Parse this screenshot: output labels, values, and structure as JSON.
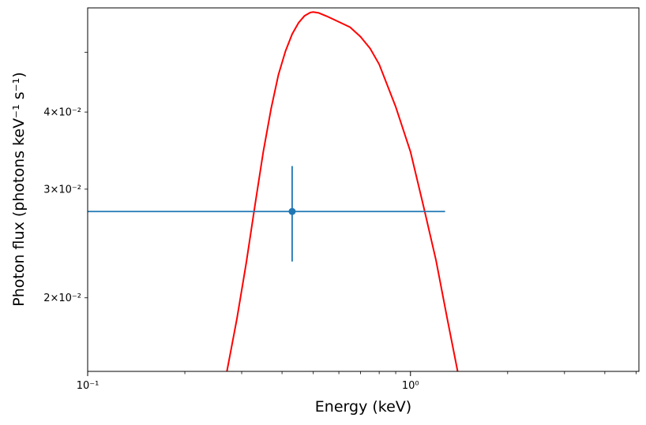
{
  "chart_data": {
    "type": "line",
    "title": "",
    "xlabel": "Energy (keV)",
    "ylabel": "Photon flux (photons keV⁻¹ s⁻¹)",
    "xscale": "log",
    "yscale": "log",
    "xlim": [
      0.1,
      5.1
    ],
    "ylim": [
      0.0152,
      0.059
    ],
    "grid": false,
    "legend": null,
    "x_ticks": [
      {
        "value": 0.1,
        "label": "10⁻¹"
      },
      {
        "value": 1.0,
        "label": "10⁰"
      }
    ],
    "y_ticks": [
      {
        "value": 0.02,
        "label": "2×10⁻²"
      },
      {
        "value": 0.03,
        "label": "3×10⁻²"
      },
      {
        "value": 0.04,
        "label": "4×10⁻²"
      }
    ],
    "series": [
      {
        "kind": "line",
        "color": "#ff0000",
        "x": [
          0.27,
          0.29,
          0.31,
          0.33,
          0.35,
          0.37,
          0.39,
          0.41,
          0.43,
          0.45,
          0.47,
          0.49,
          0.5,
          0.52,
          0.55,
          0.6,
          0.65,
          0.7,
          0.75,
          0.8,
          0.9,
          1.0,
          1.1,
          1.2,
          1.3,
          1.4
        ],
        "y": [
          0.0152,
          0.0185,
          0.0228,
          0.0283,
          0.0345,
          0.0405,
          0.046,
          0.0502,
          0.0535,
          0.0558,
          0.0573,
          0.058,
          0.0581,
          0.0579,
          0.0572,
          0.056,
          0.0549,
          0.053,
          0.0507,
          0.0478,
          0.0408,
          0.0345,
          0.028,
          0.023,
          0.0185,
          0.0152
        ]
      },
      {
        "kind": "errorbar",
        "color": "#1f77b4",
        "x": [
          0.43
        ],
        "y": [
          0.0276
        ],
        "xerr_low": [
          0.43
        ],
        "xerr_high": [
          0.85
        ],
        "yerr_low": [
          0.0229
        ],
        "yerr_high": [
          0.0327
        ]
      }
    ]
  },
  "colors": {
    "model_line": "#ff0000",
    "data_point": "#1f77b4",
    "axes": "#000000"
  }
}
